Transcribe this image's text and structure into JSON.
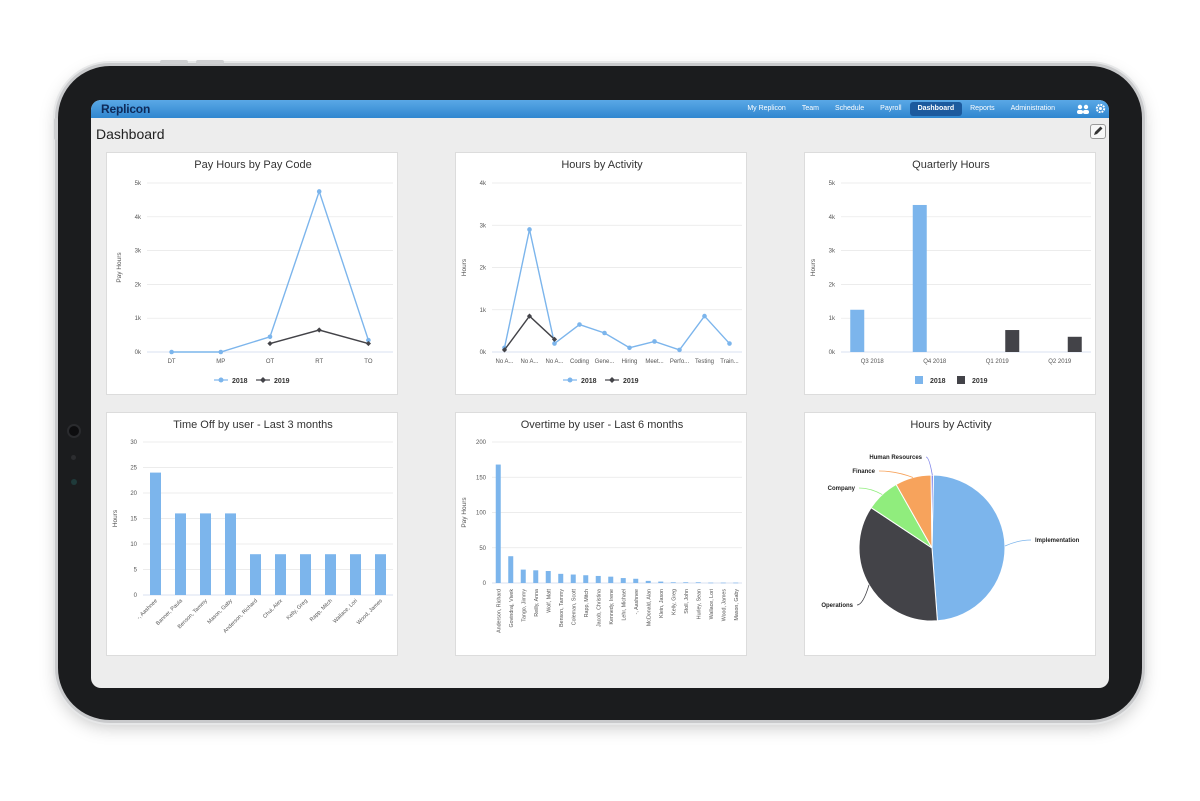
{
  "app": {
    "brand": "Replicon",
    "nav": [
      "My Replicon",
      "Team",
      "Schedule",
      "Payroll",
      "Dashboard",
      "Reports",
      "Administration"
    ],
    "active_nav": "Dashboard",
    "page_title": "Dashboard",
    "icons": [
      "users-icon",
      "gear-icon",
      "pencil-icon"
    ],
    "colors": {
      "series_2018": "#7cb5ec",
      "series_2019": "#434348",
      "topbar": "#2f86cf",
      "active_tab": "#1c5a9e"
    }
  },
  "chart_data": [
    {
      "id": "pay-hours-by-pay-code",
      "type": "line",
      "title": "Pay Hours by Pay Code",
      "ylabel": "Pay Hours",
      "xlabel": "",
      "categories": [
        "DT",
        "MP",
        "OT",
        "RT",
        "TO"
      ],
      "yticks": [
        "0k",
        "1k",
        "2k",
        "3k",
        "4k",
        "5k"
      ],
      "ylim": [
        0,
        5000
      ],
      "series": [
        {
          "name": "2018",
          "values": [
            0,
            0,
            450,
            4750,
            350
          ]
        },
        {
          "name": "2019",
          "values": [
            null,
            null,
            250,
            650,
            250
          ]
        }
      ],
      "legend": "bottom"
    },
    {
      "id": "hours-by-activity-line",
      "type": "line",
      "title": "Hours by Activity",
      "ylabel": "Hours",
      "xlabel": "",
      "categories": [
        "No A...",
        "No A...",
        "No A...",
        "Coding",
        "Gene...",
        "Hiring",
        "Meet...",
        "Perfo...",
        "Testing",
        "Train..."
      ],
      "yticks": [
        "0k",
        "1k",
        "2k",
        "3k",
        "4k"
      ],
      "ylim": [
        0,
        4000
      ],
      "series": [
        {
          "name": "2018",
          "values": [
            100,
            2900,
            200,
            650,
            450,
            100,
            250,
            50,
            850,
            200
          ]
        },
        {
          "name": "2019",
          "values": [
            50,
            850,
            300,
            null,
            null,
            null,
            null,
            null,
            null,
            null
          ]
        }
      ],
      "legend": "bottom"
    },
    {
      "id": "quarterly-hours",
      "type": "bar",
      "title": "Quarterly Hours",
      "ylabel": "Hours",
      "xlabel": "",
      "categories": [
        "Q3 2018",
        "Q4 2018",
        "Q1 2019",
        "Q2 2019"
      ],
      "yticks": [
        "0k",
        "1k",
        "2k",
        "3k",
        "4k",
        "5k"
      ],
      "ylim": [
        0,
        5000
      ],
      "series": [
        {
          "name": "2018",
          "values": [
            1250,
            4350,
            0,
            0
          ]
        },
        {
          "name": "2019",
          "values": [
            0,
            0,
            650,
            450
          ]
        }
      ],
      "legend": "bottom"
    },
    {
      "id": "time-off-by-user",
      "type": "bar",
      "title": "Time Off by user - Last 3 months",
      "ylabel": "Hours",
      "xlabel": "",
      "categories": [
        "-, Aashnee",
        "Banner, Paula",
        "Benson, Tammy",
        "Mason, Gaby",
        "Anderson, Richard",
        "Chui, Alex",
        "Kelly, Greg",
        "Rapp, Mitch",
        "Wallace, Lori",
        "Wood, James"
      ],
      "yticks": [
        "0",
        "5",
        "10",
        "15",
        "20",
        "25",
        "30"
      ],
      "ylim": [
        0,
        30
      ],
      "values": [
        24,
        16,
        16,
        16,
        8,
        8,
        8,
        8,
        8,
        8
      ]
    },
    {
      "id": "overtime-by-user",
      "type": "bar",
      "title": "Overtime by user - Last 6 months",
      "ylabel": "Pay Hours",
      "xlabel": "",
      "categories": [
        "Anderson, Richard",
        "Govindraj, Vivek",
        "Tango, Jimmy",
        "Reilly, Anna",
        "Wolf, Matt",
        "Benson, Tammy",
        "Coleman, Scott",
        "Rapp, Mitch",
        "Jacob, Christina",
        "Kennedy, Irene",
        "Lehr, Michael",
        "-, Aashnee",
        "McDonald, Alan",
        "Klein, Jason",
        "Kelly, Greg",
        "Stoll, John",
        "Hurley, Sean",
        "Wallace, Lori",
        "Wood, James",
        "Mason, Gaby"
      ],
      "yticks": [
        "0",
        "50",
        "100",
        "150",
        "200"
      ],
      "ylim": [
        0,
        200
      ],
      "values": [
        168,
        38,
        19,
        18,
        17,
        13,
        12,
        11,
        10,
        9,
        7,
        6,
        3,
        2,
        1,
        1,
        1,
        0.5,
        0.5,
        0.5
      ]
    },
    {
      "id": "hours-by-activity-pie",
      "type": "pie",
      "title": "Hours by Activity",
      "slices": [
        {
          "label": "Implementation",
          "value": 48.5,
          "color": "#7cb5ec"
        },
        {
          "label": "Operations",
          "value": 35.5,
          "color": "#434348"
        },
        {
          "label": "Company",
          "value": 7.5,
          "color": "#90ed7d"
        },
        {
          "label": "Finance",
          "value": 8,
          "color": "#f7a35c"
        },
        {
          "label": "Human Resources",
          "value": 0.5,
          "color": "#8085e9"
        }
      ]
    }
  ]
}
